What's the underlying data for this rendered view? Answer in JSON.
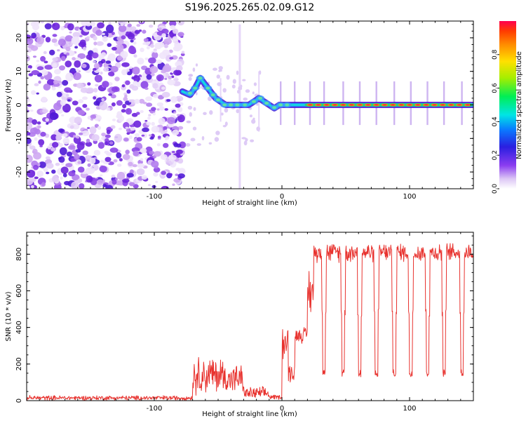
{
  "title": "S196.2025.265.02.09.G12",
  "chart_data": [
    {
      "type": "heatmap",
      "xlabel": "Height of straight line (km)",
      "ylabel": "Frequency (Hz)",
      "xlim": [
        -200,
        150
      ],
      "ylim": [
        -25,
        25
      ],
      "xticks": [
        -100,
        0,
        100
      ],
      "yticks": [
        -20,
        -10,
        0,
        10,
        20
      ],
      "noise_region_x": [
        -200,
        -75
      ],
      "transition_region_x": [
        -75,
        -15
      ],
      "track": {
        "x": [
          -78,
          -72,
          -68,
          -64,
          -60,
          -56,
          -52,
          -48,
          -44,
          -40,
          -35,
          -30,
          -26,
          -22,
          -18,
          -14,
          -10,
          -6,
          -2,
          2,
          6,
          10,
          20,
          40,
          60,
          80,
          100,
          120,
          150
        ],
        "y": [
          4,
          3,
          5,
          8,
          6,
          4,
          2,
          1,
          0,
          0,
          0,
          0,
          0,
          1,
          2,
          1,
          0,
          -1,
          0,
          0,
          0,
          0,
          0,
          0,
          0,
          0,
          0,
          0,
          0
        ]
      },
      "colorbar": {
        "label": "Normalized spectral amplitude",
        "range": [
          0,
          1
        ],
        "ticks": [
          "0.0",
          "0.2",
          "0.4",
          "0.6",
          "0.8"
        ]
      }
    },
    {
      "type": "line",
      "xlabel": "Height of straight line (km)",
      "ylabel": "SNR (10 * v/v)",
      "xlim": [
        -200,
        150
      ],
      "ylim": [
        0,
        920
      ],
      "xticks": [
        -100,
        0,
        100
      ],
      "yticks": [
        0,
        200,
        400,
        600,
        800
      ],
      "color": "#e8322e",
      "segments": [
        {
          "x_from": -200,
          "x_to": -70,
          "level": 15,
          "noise": 15
        },
        {
          "x_from": -70,
          "x_to": -45,
          "level": 140,
          "noise": 120
        },
        {
          "x_from": -45,
          "x_to": -30,
          "level": 120,
          "noise": 90
        },
        {
          "x_from": -30,
          "x_to": -10,
          "level": 40,
          "noise": 40
        },
        {
          "x_from": -10,
          "x_to": 0,
          "level": 20,
          "noise": 15
        },
        {
          "x_from": 0,
          "x_to": 5,
          "level": 320,
          "noise": 130
        },
        {
          "x_from": 5,
          "x_to": 10,
          "level": 150,
          "noise": 60
        },
        {
          "x_from": 10,
          "x_to": 20,
          "level": 360,
          "noise": 50
        },
        {
          "x_from": 20,
          "x_to": 25,
          "level": 600,
          "noise": 150
        },
        {
          "x_from": 25,
          "x_to": 150,
          "level": 810,
          "noise": 60
        }
      ],
      "dips_x": [
        33,
        48,
        61,
        74,
        88,
        101,
        114,
        127,
        141
      ],
      "dip_level": 150
    }
  ]
}
